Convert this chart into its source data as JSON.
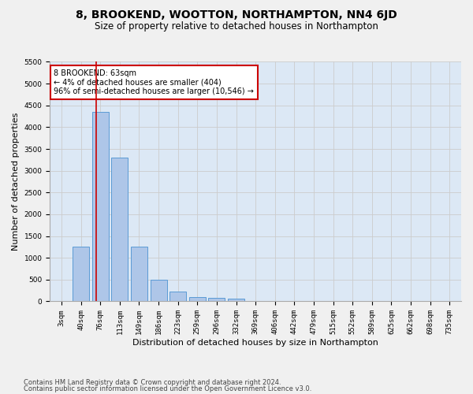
{
  "title": "8, BROOKEND, WOOTTON, NORTHAMPTON, NN4 6JD",
  "subtitle": "Size of property relative to detached houses in Northampton",
  "xlabel": "Distribution of detached houses by size in Northampton",
  "ylabel": "Number of detached properties",
  "footnote1": "Contains HM Land Registry data © Crown copyright and database right 2024.",
  "footnote2": "Contains public sector information licensed under the Open Government Licence v3.0.",
  "categories": [
    "3sqm",
    "40sqm",
    "76sqm",
    "113sqm",
    "149sqm",
    "186sqm",
    "223sqm",
    "259sqm",
    "296sqm",
    "332sqm",
    "369sqm",
    "406sqm",
    "442sqm",
    "479sqm",
    "515sqm",
    "552sqm",
    "589sqm",
    "625sqm",
    "662sqm",
    "698sqm",
    "735sqm"
  ],
  "values": [
    0,
    1260,
    4350,
    3300,
    1260,
    490,
    220,
    100,
    75,
    55,
    0,
    0,
    0,
    0,
    0,
    0,
    0,
    0,
    0,
    0,
    0
  ],
  "bar_color": "#aec6e8",
  "bar_edge_color": "#5a9bd5",
  "property_line_x": 1.78,
  "annotation_text": "8 BROOKEND: 63sqm\n← 4% of detached houses are smaller (404)\n96% of semi-detached houses are larger (10,546) →",
  "annotation_box_color": "#ffffff",
  "annotation_box_edge_color": "#cc0000",
  "vline_color": "#cc0000",
  "ylim": [
    0,
    5500
  ],
  "yticks": [
    0,
    500,
    1000,
    1500,
    2000,
    2500,
    3000,
    3500,
    4000,
    4500,
    5000,
    5500
  ],
  "grid_color": "#cccccc",
  "bg_color": "#dce8f5",
  "fig_bg_color": "#f0f0f0",
  "title_fontsize": 10,
  "subtitle_fontsize": 8.5,
  "xlabel_fontsize": 8,
  "ylabel_fontsize": 8,
  "tick_fontsize": 6.5,
  "annotation_fontsize": 7,
  "footnote_fontsize": 6
}
